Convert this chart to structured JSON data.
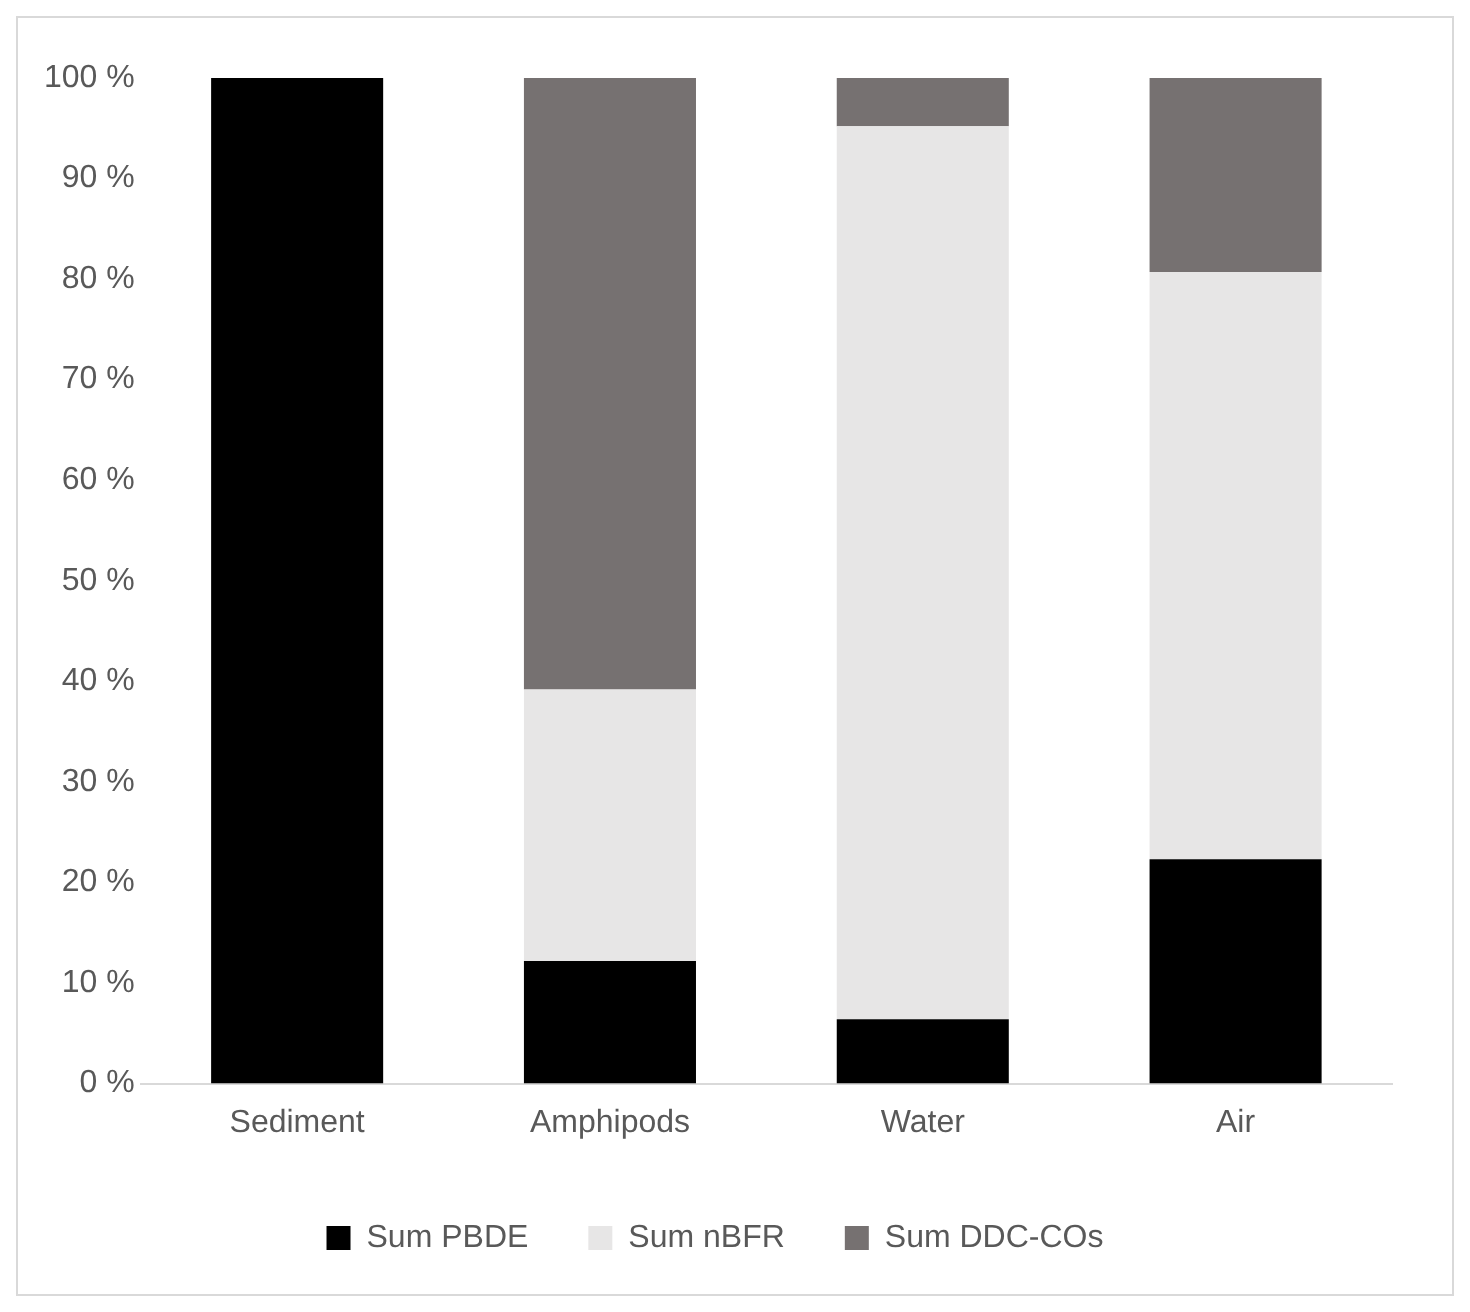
{
  "chart_data": {
    "type": "bar",
    "stacked": true,
    "categories": [
      "Sediment",
      "Amphipods",
      "Water",
      "Air"
    ],
    "series": [
      {
        "name": "Sum PBDE",
        "color": "#000000",
        "values": [
          100,
          12.2,
          6.4,
          22.3
        ]
      },
      {
        "name": "Sum nBFR",
        "color": "#e7e6e6",
        "values": [
          0,
          27.0,
          88.8,
          58.4
        ]
      },
      {
        "name": "Sum DDC-COs",
        "color": "#767171",
        "values": [
          0,
          60.8,
          4.8,
          19.3
        ]
      }
    ],
    "ylim": [
      0,
      100
    ],
    "yticks": [
      {
        "value": 0,
        "label": "0 %"
      },
      {
        "value": 10,
        "label": "10 %"
      },
      {
        "value": 20,
        "label": "20 %"
      },
      {
        "value": 30,
        "label": "30 %"
      },
      {
        "value": 40,
        "label": "40 %"
      },
      {
        "value": 50,
        "label": "50 %"
      },
      {
        "value": 60,
        "label": "60 %"
      },
      {
        "value": 70,
        "label": "70 %"
      },
      {
        "value": 80,
        "label": "80 %"
      },
      {
        "value": 90,
        "label": "90 %"
      },
      {
        "value": 100,
        "label": "100 %"
      }
    ],
    "grid": false,
    "legend": "bottom"
  }
}
